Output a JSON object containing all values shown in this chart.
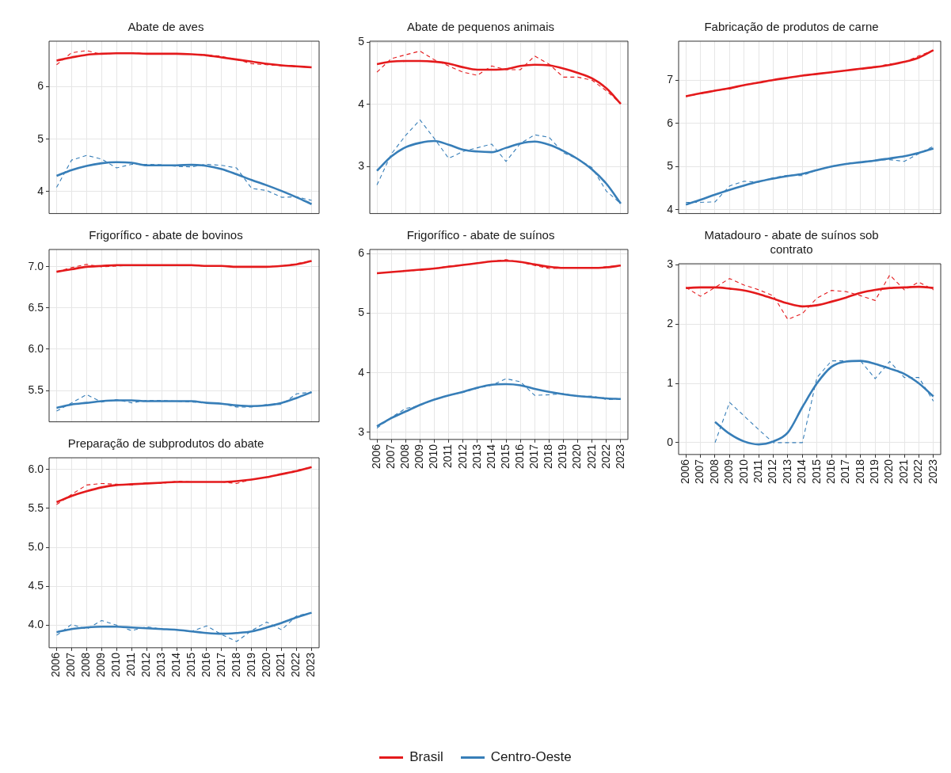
{
  "chart_data": [
    {
      "type": "line",
      "title": "Abate de aves",
      "categories": [
        "2006",
        "2007",
        "2008",
        "2009",
        "2010",
        "2011",
        "2012",
        "2013",
        "2014",
        "2015",
        "2016",
        "2017",
        "2018",
        "2019",
        "2020",
        "2021",
        "2022",
        "2023"
      ],
      "ylim": [
        3.58,
        6.87
      ],
      "yticks": [
        4,
        5,
        6
      ],
      "grid": true,
      "tick_labels": "y",
      "series": [
        {
          "color": "#e41a1c",
          "line_style": "solid",
          "values": [
            6.5,
            6.56,
            6.61,
            6.63,
            6.64,
            6.64,
            6.63,
            6.63,
            6.63,
            6.62,
            6.6,
            6.56,
            6.52,
            6.48,
            6.44,
            6.41,
            6.39,
            6.37
          ]
        },
        {
          "color": "#e41a1c",
          "line_style": "dashed",
          "values": [
            6.42,
            6.65,
            6.69,
            6.62,
            6.64,
            6.65,
            6.63,
            6.62,
            6.63,
            6.62,
            6.61,
            6.58,
            6.52,
            6.44,
            6.42,
            6.4,
            6.39,
            6.37
          ]
        },
        {
          "color": "#377eb8",
          "line_style": "solid",
          "values": [
            4.3,
            4.41,
            4.49,
            4.54,
            4.56,
            4.55,
            4.5,
            4.5,
            4.5,
            4.51,
            4.49,
            4.43,
            4.33,
            4.22,
            4.12,
            4.01,
            3.89,
            3.76
          ]
        },
        {
          "color": "#377eb8",
          "line_style": "dashed",
          "values": [
            4.08,
            4.6,
            4.69,
            4.62,
            4.45,
            4.52,
            4.52,
            4.51,
            4.48,
            4.47,
            4.52,
            4.5,
            4.45,
            4.06,
            4.02,
            3.89,
            3.9,
            3.83
          ]
        }
      ]
    },
    {
      "type": "line",
      "title": "Abate de pequenos animais",
      "categories": [
        "2006",
        "2007",
        "2008",
        "2009",
        "2010",
        "2011",
        "2012",
        "2013",
        "2014",
        "2015",
        "2016",
        "2017",
        "2018",
        "2019",
        "2020",
        "2021",
        "2022",
        "2023"
      ],
      "ylim": [
        2.24,
        5.02
      ],
      "yticks": [
        3,
        4,
        5
      ],
      "grid": true,
      "tick_labels": "y",
      "series": [
        {
          "color": "#e41a1c",
          "line_style": "solid",
          "values": [
            4.65,
            4.69,
            4.7,
            4.7,
            4.69,
            4.66,
            4.6,
            4.56,
            4.56,
            4.57,
            4.62,
            4.64,
            4.63,
            4.58,
            4.51,
            4.42,
            4.26,
            4.01
          ]
        },
        {
          "color": "#e41a1c",
          "line_style": "dashed",
          "values": [
            4.52,
            4.74,
            4.8,
            4.86,
            4.72,
            4.62,
            4.52,
            4.47,
            4.62,
            4.56,
            4.56,
            4.78,
            4.65,
            4.44,
            4.44,
            4.39,
            4.22,
            4.01
          ]
        },
        {
          "color": "#377eb8",
          "line_style": "solid",
          "values": [
            2.93,
            3.16,
            3.31,
            3.38,
            3.41,
            3.35,
            3.27,
            3.24,
            3.23,
            3.3,
            3.37,
            3.4,
            3.35,
            3.25,
            3.12,
            2.95,
            2.72,
            2.4
          ]
        },
        {
          "color": "#377eb8",
          "line_style": "dashed",
          "values": [
            2.7,
            3.2,
            3.5,
            3.75,
            3.45,
            3.13,
            3.24,
            3.3,
            3.36,
            3.08,
            3.37,
            3.51,
            3.47,
            3.22,
            3.12,
            2.98,
            2.6,
            2.4
          ]
        }
      ]
    },
    {
      "type": "line",
      "title": "Fabricação de produtos de carne",
      "categories": [
        "2006",
        "2007",
        "2008",
        "2009",
        "2010",
        "2011",
        "2012",
        "2013",
        "2014",
        "2015",
        "2016",
        "2017",
        "2018",
        "2019",
        "2020",
        "2021",
        "2022",
        "2023"
      ],
      "ylim": [
        3.91,
        7.91
      ],
      "yticks": [
        4,
        5,
        6,
        7
      ],
      "grid": true,
      "tick_labels": "y",
      "series": [
        {
          "color": "#e41a1c",
          "line_style": "solid",
          "values": [
            6.63,
            6.7,
            6.76,
            6.82,
            6.89,
            6.95,
            7.01,
            7.06,
            7.11,
            7.15,
            7.19,
            7.23,
            7.27,
            7.31,
            7.36,
            7.43,
            7.53,
            7.7
          ]
        },
        {
          "color": "#e41a1c",
          "line_style": "dashed",
          "values": [
            6.63,
            6.69,
            6.77,
            6.8,
            6.89,
            6.96,
            7.01,
            7.06,
            7.11,
            7.15,
            7.19,
            7.23,
            7.27,
            7.31,
            7.38,
            7.42,
            7.57,
            7.7
          ]
        },
        {
          "color": "#377eb8",
          "line_style": "solid",
          "values": [
            4.12,
            4.23,
            4.35,
            4.46,
            4.56,
            4.65,
            4.72,
            4.78,
            4.83,
            4.92,
            5.0,
            5.06,
            5.1,
            5.14,
            5.19,
            5.24,
            5.32,
            5.42
          ]
        },
        {
          "color": "#377eb8",
          "line_style": "dashed",
          "values": [
            4.17,
            4.17,
            4.18,
            4.55,
            4.66,
            4.64,
            4.74,
            4.8,
            4.79,
            4.92,
            5.01,
            5.06,
            5.1,
            5.15,
            5.16,
            5.12,
            5.3,
            5.47
          ]
        }
      ]
    },
    {
      "type": "line",
      "title": "Frigorífico - abate de bovinos",
      "categories": [
        "2006",
        "2007",
        "2008",
        "2009",
        "2010",
        "2011",
        "2012",
        "2013",
        "2014",
        "2015",
        "2016",
        "2017",
        "2018",
        "2019",
        "2020",
        "2021",
        "2022",
        "2023"
      ],
      "ylim": [
        5.12,
        7.21
      ],
      "yticks": [
        5.5,
        {
          "value": 6,
          "label": "6.0"
        },
        6.5,
        {
          "value": 7,
          "label": "7.0"
        }
      ],
      "grid": true,
      "tick_labels": "y",
      "series": [
        {
          "color": "#e41a1c",
          "line_style": "solid",
          "values": [
            6.94,
            6.97,
            7.0,
            7.01,
            7.02,
            7.02,
            7.02,
            7.02,
            7.02,
            7.02,
            7.01,
            7.01,
            7.0,
            7.0,
            7.0,
            7.01,
            7.03,
            7.07
          ]
        },
        {
          "color": "#e41a1c",
          "line_style": "dashed",
          "values": [
            6.94,
            6.99,
            7.03,
            7.0,
            7.01,
            7.02,
            7.02,
            7.02,
            7.02,
            7.02,
            7.01,
            7.01,
            7.0,
            7.0,
            7.0,
            7.01,
            7.04,
            7.07
          ]
        },
        {
          "color": "#377eb8",
          "line_style": "solid",
          "values": [
            5.29,
            5.33,
            5.35,
            5.37,
            5.38,
            5.38,
            5.37,
            5.37,
            5.37,
            5.37,
            5.35,
            5.34,
            5.32,
            5.31,
            5.32,
            5.35,
            5.41,
            5.48
          ]
        },
        {
          "color": "#377eb8",
          "line_style": "dashed",
          "values": [
            5.25,
            5.35,
            5.45,
            5.36,
            5.39,
            5.35,
            5.38,
            5.38,
            5.37,
            5.36,
            5.35,
            5.34,
            5.3,
            5.3,
            5.33,
            5.33,
            5.46,
            5.48
          ]
        }
      ]
    },
    {
      "type": "line",
      "title": "Frigorífico - abate de suínos",
      "categories": [
        "2006",
        "2007",
        "2008",
        "2009",
        "2010",
        "2011",
        "2012",
        "2013",
        "2014",
        "2015",
        "2016",
        "2017",
        "2018",
        "2019",
        "2020",
        "2021",
        "2022",
        "2023"
      ],
      "ylim": [
        2.88,
        6.07
      ],
      "yticks": [
        3,
        4,
        5,
        6
      ],
      "grid": true,
      "series": [
        {
          "color": "#e41a1c",
          "line_style": "solid",
          "values": [
            5.67,
            5.69,
            5.71,
            5.73,
            5.75,
            5.78,
            5.81,
            5.84,
            5.87,
            5.88,
            5.86,
            5.82,
            5.78,
            5.76,
            5.76,
            5.76,
            5.77,
            5.8
          ]
        },
        {
          "color": "#e41a1c",
          "line_style": "dashed",
          "values": [
            5.67,
            5.69,
            5.71,
            5.72,
            5.75,
            5.79,
            5.81,
            5.84,
            5.87,
            5.9,
            5.86,
            5.8,
            5.75,
            5.76,
            5.76,
            5.76,
            5.78,
            5.8
          ]
        },
        {
          "color": "#377eb8",
          "line_style": "solid",
          "values": [
            3.1,
            3.24,
            3.35,
            3.46,
            3.55,
            3.62,
            3.68,
            3.75,
            3.8,
            3.81,
            3.79,
            3.73,
            3.68,
            3.64,
            3.61,
            3.59,
            3.57,
            3.56
          ]
        },
        {
          "color": "#377eb8",
          "line_style": "dashed",
          "values": [
            3.07,
            3.25,
            3.4,
            3.45,
            3.55,
            3.62,
            3.67,
            3.74,
            3.79,
            3.9,
            3.85,
            3.62,
            3.63,
            3.65,
            3.6,
            3.61,
            3.55,
            3.56
          ]
        }
      ]
    },
    {
      "type": "line",
      "title": "Matadouro - abate de suínos sob contrato",
      "categories": [
        "2006",
        "2007",
        "2008",
        "2009",
        "2010",
        "2011",
        "2012",
        "2013",
        "2014",
        "2015",
        "2016",
        "2017",
        "2018",
        "2019",
        "2020",
        "2021",
        "2022",
        "2023"
      ],
      "ylim": [
        -0.2,
        3.02
      ],
      "yticks": [
        0,
        1,
        2,
        3
      ],
      "grid": true,
      "series": [
        {
          "color": "#e41a1c",
          "line_style": "solid",
          "values": [
            2.61,
            2.62,
            2.62,
            2.6,
            2.57,
            2.51,
            2.43,
            2.35,
            2.3,
            2.32,
            2.38,
            2.45,
            2.53,
            2.58,
            2.61,
            2.62,
            2.63,
            2.61
          ]
        },
        {
          "color": "#e41a1c",
          "line_style": "dashed",
          "values": [
            2.62,
            2.47,
            2.62,
            2.77,
            2.66,
            2.58,
            2.48,
            2.08,
            2.18,
            2.44,
            2.57,
            2.55,
            2.48,
            2.4,
            2.83,
            2.58,
            2.71,
            2.58
          ]
        },
        {
          "color": "#377eb8",
          "line_style": "solid",
          "values": [
            null,
            null,
            0.35,
            0.15,
            0.02,
            -0.03,
            0.02,
            0.17,
            0.6,
            1.0,
            1.28,
            1.37,
            1.38,
            1.33,
            1.25,
            1.16,
            1.0,
            0.78
          ]
        },
        {
          "color": "#377eb8",
          "line_style": "dashed",
          "values": [
            null,
            null,
            0,
            0.68,
            0.45,
            0.22,
            0,
            0,
            0,
            1.1,
            1.38,
            1.38,
            1.38,
            1.08,
            1.37,
            1.1,
            1.1,
            0.7
          ]
        }
      ]
    },
    {
      "type": "line",
      "title": "Preparação de subprodutos do abate",
      "categories": [
        "2006",
        "2007",
        "2008",
        "2009",
        "2010",
        "2011",
        "2012",
        "2013",
        "2014",
        "2015",
        "2016",
        "2017",
        "2018",
        "2019",
        "2020",
        "2021",
        "2022",
        "2023"
      ],
      "ylim": [
        3.71,
        6.15
      ],
      "yticks": [
        {
          "value": 4,
          "label": "4.0"
        },
        4.5,
        {
          "value": 5,
          "label": "5.0"
        },
        5.5,
        {
          "value": 6,
          "label": "6.0"
        }
      ],
      "grid": true,
      "legend": "bottom",
      "series": [
        {
          "name": "Brasil",
          "color": "#e41a1c",
          "line_style": "solid",
          "values": [
            5.58,
            5.66,
            5.72,
            5.77,
            5.8,
            5.81,
            5.82,
            5.83,
            5.84,
            5.84,
            5.84,
            5.84,
            5.85,
            5.87,
            5.9,
            5.94,
            5.98,
            6.03
          ]
        },
        {
          "color": "#e41a1c",
          "line_style": "dashed",
          "values": [
            5.55,
            5.68,
            5.8,
            5.82,
            5.81,
            5.8,
            5.83,
            5.82,
            5.85,
            5.84,
            5.84,
            5.84,
            5.82,
            5.87,
            5.9,
            5.94,
            5.99,
            6.03
          ]
        },
        {
          "name": "Centro-Oeste",
          "color": "#377eb8",
          "line_style": "solid",
          "values": [
            3.91,
            3.95,
            3.97,
            3.98,
            3.98,
            3.97,
            3.96,
            3.95,
            3.94,
            3.92,
            3.9,
            3.89,
            3.9,
            3.92,
            3.97,
            4.03,
            4.1,
            4.16
          ]
        },
        {
          "color": "#377eb8",
          "line_style": "dashed",
          "values": [
            3.87,
            4.01,
            3.95,
            4.06,
            4.0,
            3.93,
            3.98,
            3.95,
            3.94,
            3.92,
            3.99,
            3.88,
            3.79,
            3.93,
            4.04,
            3.94,
            4.12,
            4.16
          ]
        }
      ]
    }
  ]
}
